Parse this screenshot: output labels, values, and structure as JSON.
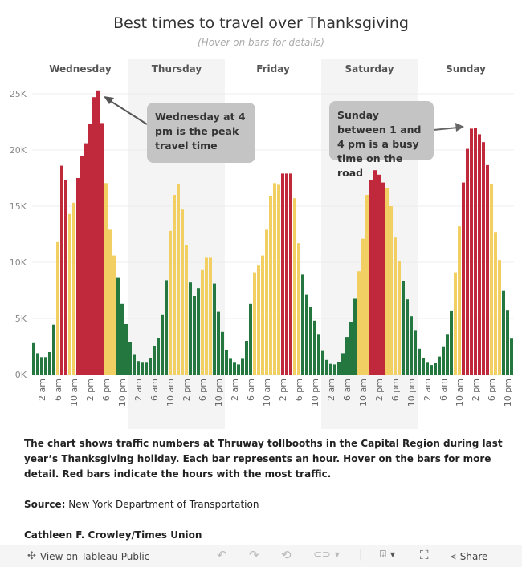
{
  "title": "Best times to travel over Thanksgiving",
  "subtitle": "(Hover on bars for details)",
  "chart_data": {
    "type": "bar",
    "title": "Best times to travel over Thanksgiving",
    "panels": [
      "Wednesday",
      "Thursday",
      "Friday",
      "Saturday",
      "Sunday"
    ],
    "x_tick_labels": [
      "2 am",
      "6 am",
      "10 am",
      "2 pm",
      "6 pm",
      "10 pm"
    ],
    "x_tick_hours": [
      2,
      6,
      10,
      14,
      18,
      22
    ],
    "y_ticks": [
      0,
      5000,
      10000,
      15000,
      20000,
      25000
    ],
    "y_tick_labels": [
      "0K",
      "5K",
      "10K",
      "15K",
      "20K",
      "25K"
    ],
    "ylim": [
      0,
      26000
    ],
    "grid": true,
    "colors": {
      "high": "#c0283c",
      "medium": "#f2cf63",
      "low": "#23773f"
    },
    "series": [
      {
        "name": "Wednesday",
        "values": [
          2800,
          1900,
          1550,
          1550,
          2000,
          4450,
          11800,
          18600,
          17300,
          14300,
          15300,
          17500,
          19500,
          20600,
          22300,
          24700,
          25300,
          22400,
          17050,
          12900,
          10600,
          8600,
          6300,
          4500
        ],
        "levels": [
          "low",
          "low",
          "low",
          "low",
          "low",
          "low",
          "medium",
          "high",
          "high",
          "medium",
          "medium",
          "high",
          "high",
          "high",
          "high",
          "high",
          "high",
          "high",
          "medium",
          "medium",
          "medium",
          "low",
          "low",
          "low"
        ]
      },
      {
        "name": "Thursday",
        "values": [
          2900,
          1750,
          1200,
          1050,
          1050,
          1450,
          2500,
          3250,
          5300,
          8400,
          12800,
          16000,
          17000,
          14700,
          11500,
          8200,
          7000,
          7700,
          9300,
          10400,
          10400,
          8100,
          5600,
          3800
        ],
        "levels": [
          "low",
          "low",
          "low",
          "low",
          "low",
          "low",
          "low",
          "low",
          "low",
          "low",
          "medium",
          "medium",
          "medium",
          "medium",
          "medium",
          "low",
          "low",
          "low",
          "medium",
          "medium",
          "medium",
          "low",
          "low",
          "low"
        ]
      },
      {
        "name": "Friday",
        "values": [
          2200,
          1400,
          1050,
          900,
          1400,
          3000,
          6300,
          9100,
          9700,
          10600,
          12900,
          15900,
          17050,
          16900,
          17900,
          17900,
          17900,
          15700,
          11700,
          8900,
          7100,
          6000,
          4800,
          3550
        ],
        "levels": [
          "low",
          "low",
          "low",
          "low",
          "low",
          "low",
          "low",
          "medium",
          "medium",
          "medium",
          "medium",
          "medium",
          "medium",
          "medium",
          "high",
          "high",
          "high",
          "medium",
          "medium",
          "low",
          "low",
          "low",
          "low",
          "low"
        ]
      },
      {
        "name": "Saturday",
        "values": [
          2100,
          1300,
          950,
          900,
          1100,
          1900,
          3350,
          4700,
          6750,
          9200,
          12100,
          16000,
          17300,
          18200,
          17800,
          17100,
          16600,
          15000,
          12200,
          10100,
          8300,
          6700,
          5200,
          3900
        ],
        "levels": [
          "low",
          "low",
          "low",
          "low",
          "low",
          "low",
          "low",
          "low",
          "low",
          "medium",
          "medium",
          "medium",
          "high",
          "high",
          "high",
          "high",
          "medium",
          "medium",
          "medium",
          "medium",
          "low",
          "low",
          "low",
          "low"
        ]
      },
      {
        "name": "Sunday",
        "values": [
          2300,
          1450,
          1050,
          850,
          1000,
          1600,
          2450,
          3550,
          5650,
          9100,
          13200,
          17100,
          20100,
          21900,
          22000,
          21400,
          20700,
          18650,
          17000,
          12700,
          10200,
          7450,
          5700,
          3200
        ],
        "levels": [
          "low",
          "low",
          "low",
          "low",
          "low",
          "low",
          "low",
          "low",
          "low",
          "medium",
          "medium",
          "high",
          "high",
          "high",
          "high",
          "high",
          "high",
          "high",
          "medium",
          "medium",
          "medium",
          "low",
          "low",
          "low"
        ]
      }
    ],
    "annotations": [
      "Wednesday at 4 pm is the peak travel time",
      "Sunday between 1 and 4 pm is a busy time on the road"
    ]
  },
  "description": {
    "body": "The chart shows traffic numbers at Thruway tollbooths in the Capital Region during last year’s Thanksgiving holiday. Each bar represents an hour. Hover on the bars for more detail. Red bars indicate the hours with the most traffic.",
    "source_label": "Source:",
    "source": " New York Department of Transportation",
    "author": "Cathleen F. Crowley/Times Union"
  },
  "toolbar": {
    "view_label": "View on Tableau Public",
    "share_label": "Share",
    "icons": [
      "tableau-logo-icon",
      "undo-icon",
      "redo-icon",
      "revert-icon",
      "refresh-icon",
      "download-icon",
      "fullscreen-icon",
      "share-icon"
    ]
  }
}
